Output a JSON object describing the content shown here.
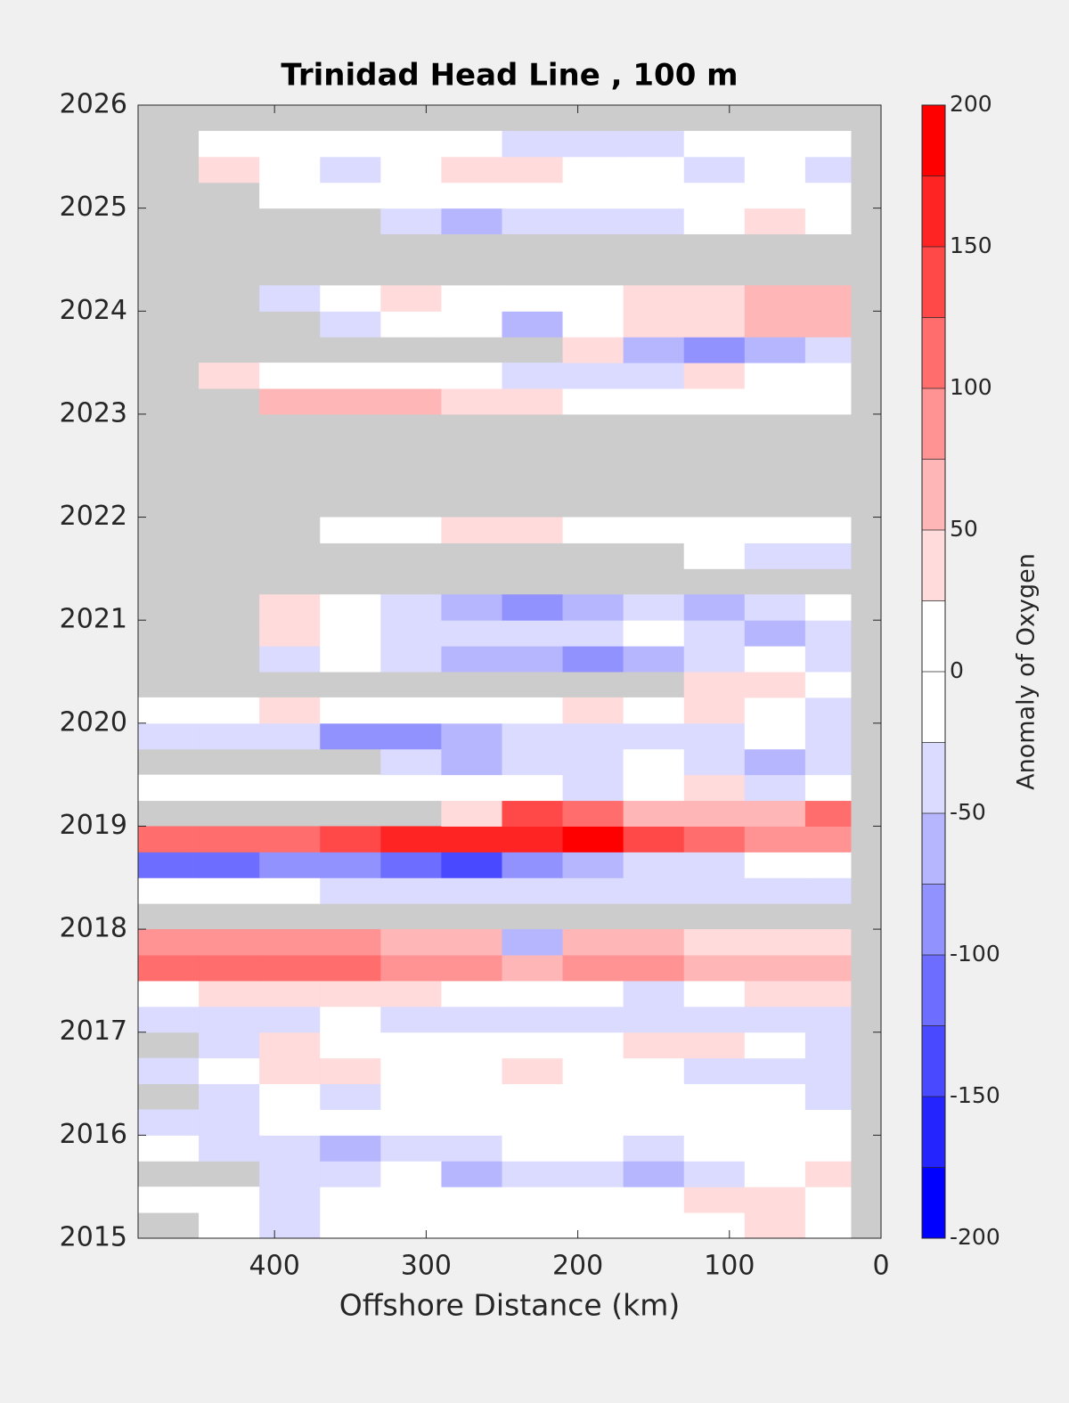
{
  "chart_data": {
    "type": "contour",
    "title": "Trinidad Head Line , 100 m",
    "xlabel": "Offshore Distance (km)",
    "xlim": [
      490,
      0
    ],
    "xticks": [
      400,
      300,
      200,
      100,
      0
    ],
    "ylim": [
      2015,
      2026
    ],
    "yticks": [
      2015,
      2016,
      2017,
      2018,
      2019,
      2020,
      2021,
      2022,
      2023,
      2024,
      2025,
      2026
    ],
    "missing_color": "#cccccc",
    "xbins": [
      490,
      450,
      410,
      370,
      330,
      290,
      250,
      210,
      170,
      130,
      90,
      50,
      20
    ],
    "ybins": [
      2015,
      2015.25,
      2015.5,
      2015.75,
      2016,
      2016.25,
      2016.5,
      2016.75,
      2017,
      2017.25,
      2017.5,
      2017.75,
      2018,
      2018.25,
      2018.5,
      2018.75,
      2019,
      2019.25,
      2019.5,
      2019.75,
      2020,
      2020.25,
      2020.5,
      2020.75,
      2021,
      2021.25,
      2021.5,
      2021.75,
      2022,
      2022.25,
      2022.5,
      2022.75,
      2023,
      2023.25,
      2023.5,
      2023.75,
      2024,
      2024.25,
      2024.5,
      2024.75,
      2025,
      2025.25,
      2025.5,
      2025.75,
      2026
    ],
    "z": [
      [
        null,
        0,
        -30,
        0,
        0,
        0,
        0,
        0,
        0,
        10,
        30,
        0
      ],
      [
        10,
        0,
        -30,
        -20,
        0,
        0,
        0,
        -10,
        0,
        40,
        30,
        20
      ],
      [
        null,
        null,
        -40,
        -40,
        -20,
        -60,
        -40,
        -50,
        -60,
        -40,
        -20,
        30
      ],
      [
        -20,
        -40,
        -40,
        -60,
        -30,
        -40,
        -20,
        -10,
        -30,
        -20,
        -10,
        0
      ],
      [
        -30,
        -30,
        0,
        0,
        0,
        0,
        0,
        0,
        0,
        0,
        0,
        0
      ],
      [
        null,
        -30,
        0,
        -40,
        0,
        0,
        0,
        0,
        0,
        0,
        0,
        -30
      ],
      [
        -40,
        -20,
        30,
        30,
        0,
        0,
        30,
        0,
        0,
        -40,
        -40,
        -30
      ],
      [
        null,
        -30,
        30,
        0,
        0,
        0,
        0,
        0,
        30,
        30,
        0,
        -30
      ],
      [
        -40,
        -30,
        -30,
        0,
        -30,
        -40,
        -30,
        -40,
        -40,
        -30,
        -40,
        -30
      ],
      [
        20,
        30,
        30,
        40,
        30,
        0,
        0,
        0,
        -30,
        0,
        30,
        40
      ],
      [
        110,
        120,
        110,
        100,
        90,
        80,
        70,
        90,
        90,
        60,
        50,
        50
      ],
      [
        80,
        80,
        80,
        80,
        60,
        60,
        -60,
        70,
        60,
        40,
        30,
        30
      ],
      [
        null,
        null,
        null,
        null,
        null,
        null,
        null,
        null,
        null,
        null,
        null,
        null
      ],
      [
        0,
        0,
        -20,
        -30,
        -40,
        -30,
        -30,
        -40,
        -30,
        -40,
        -30,
        -30
      ],
      [
        -120,
        -110,
        -100,
        -90,
        -110,
        -150,
        -80,
        -60,
        -40,
        -30,
        -20,
        20
      ],
      [
        110,
        100,
        110,
        130,
        150,
        160,
        170,
        180,
        130,
        100,
        90,
        80
      ],
      [
        null,
        null,
        null,
        null,
        null,
        40,
        140,
        120,
        60,
        60,
        50,
        100
      ],
      [
        0,
        0,
        -20,
        0,
        0,
        0,
        0,
        -30,
        0,
        30,
        -40,
        0
      ],
      [
        null,
        null,
        null,
        null,
        -30,
        -60,
        -40,
        -30,
        -20,
        -30,
        -60,
        -30
      ],
      [
        -30,
        -30,
        -30,
        -80,
        -100,
        -60,
        -40,
        -30,
        -30,
        -30,
        -20,
        -40
      ],
      [
        0,
        0,
        30,
        0,
        0,
        0,
        0,
        30,
        0,
        30,
        0,
        -30
      ],
      [
        null,
        null,
        null,
        null,
        null,
        null,
        null,
        null,
        null,
        30,
        30,
        0
      ],
      [
        null,
        null,
        -30,
        -20,
        -30,
        -60,
        -60,
        -90,
        -60,
        -30,
        -20,
        -30
      ],
      [
        null,
        null,
        30,
        0,
        -30,
        -40,
        -30,
        -30,
        -20,
        -30,
        -60,
        -50
      ],
      [
        null,
        null,
        30,
        0,
        -30,
        -60,
        -80,
        -60,
        -50,
        -60,
        -50,
        0
      ],
      [
        null,
        null,
        null,
        null,
        null,
        null,
        null,
        null,
        null,
        null,
        null,
        null
      ],
      [
        null,
        null,
        null,
        null,
        null,
        null,
        null,
        null,
        null,
        0,
        -30,
        -50
      ],
      [
        null,
        null,
        null,
        0,
        0,
        30,
        30,
        0,
        0,
        0,
        0,
        0
      ],
      [
        null,
        null,
        null,
        null,
        null,
        null,
        null,
        null,
        null,
        null,
        null,
        null
      ],
      [
        null,
        null,
        null,
        null,
        null,
        null,
        null,
        null,
        null,
        null,
        null,
        null
      ],
      [
        null,
        null,
        null,
        null,
        null,
        null,
        null,
        null,
        null,
        null,
        null,
        null
      ],
      [
        null,
        null,
        null,
        null,
        null,
        null,
        null,
        null,
        null,
        null,
        null,
        null
      ],
      [
        null,
        null,
        60,
        60,
        60,
        40,
        30,
        0,
        0,
        0,
        0,
        0
      ],
      [
        null,
        30,
        20,
        0,
        0,
        0,
        -40,
        -30,
        -30,
        30,
        0,
        0
      ],
      [
        null,
        null,
        null,
        null,
        null,
        null,
        null,
        30,
        -60,
        -100,
        -70,
        -40
      ],
      [
        null,
        null,
        null,
        -30,
        0,
        0,
        -60,
        0,
        30,
        30,
        60,
        60
      ],
      [
        null,
        null,
        -30,
        0,
        30,
        0,
        0,
        0,
        30,
        40,
        50,
        50
      ],
      [
        null,
        null,
        null,
        null,
        null,
        null,
        null,
        null,
        null,
        null,
        null,
        null
      ],
      [
        null,
        null,
        null,
        null,
        null,
        null,
        null,
        null,
        null,
        null,
        null,
        null
      ],
      [
        null,
        null,
        null,
        null,
        -40,
        -60,
        -40,
        -40,
        -40,
        0,
        30,
        0
      ],
      [
        null,
        null,
        0,
        0,
        0,
        0,
        0,
        0,
        0,
        0,
        0,
        0
      ],
      [
        null,
        30,
        0,
        -30,
        0,
        30,
        30,
        0,
        0,
        -30,
        0,
        -30
      ],
      [
        null,
        0,
        0,
        0,
        0,
        0,
        -30,
        -50,
        -40,
        0,
        0,
        0
      ],
      [
        null,
        null,
        null,
        null,
        null,
        null,
        null,
        null,
        null,
        null,
        null,
        null
      ]
    ],
    "colorbar": {
      "label": "Anomaly of Oxygen",
      "lim": [
        -200,
        200
      ],
      "ticks": [
        -200,
        -150,
        -100,
        -50,
        0,
        50,
        100,
        150,
        200
      ],
      "levels": [
        -200,
        -175,
        -150,
        -125,
        -100,
        -75,
        -50,
        -25,
        0,
        25,
        50,
        75,
        100,
        125,
        150,
        175,
        200
      ],
      "colors": [
        "#0000ff",
        "#2424ff",
        "#4949ff",
        "#6d6dff",
        "#9292ff",
        "#b6b6ff",
        "#dbdbff",
        "#ffffff",
        "#ffffff",
        "#ffdbdb",
        "#ffb6b6",
        "#ff9292",
        "#ff6d6d",
        "#ff4949",
        "#ff2424",
        "#ff0000"
      ]
    }
  }
}
